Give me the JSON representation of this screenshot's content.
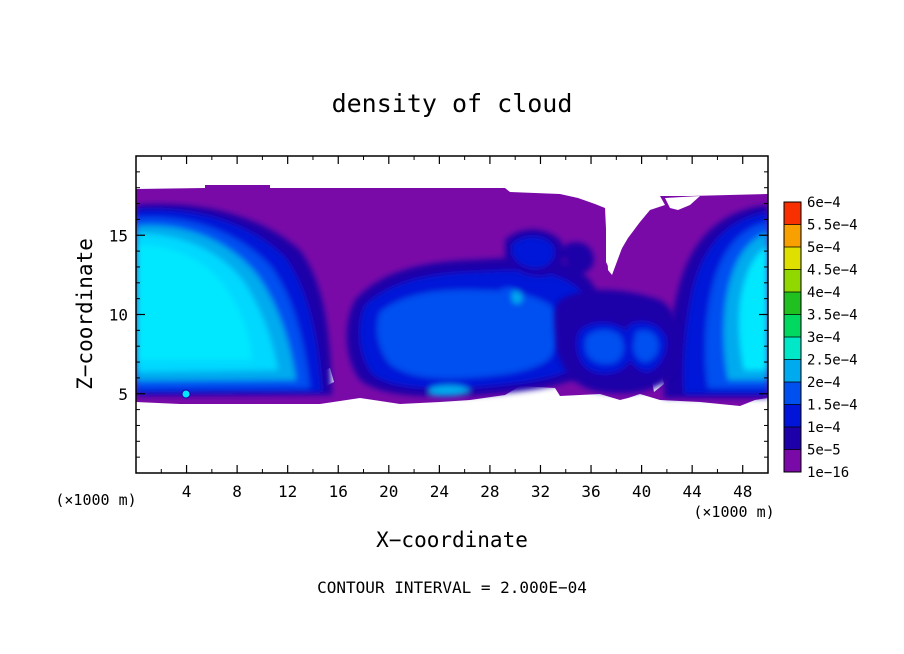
{
  "chart_data": {
    "type": "heatmap",
    "title": "density of cloud",
    "xlabel": "X−coordinate",
    "ylabel": "Z−coordinate",
    "x_unit": "(×1000 m)",
    "y_unit": "(×1000 m)",
    "xlim": [
      0,
      50
    ],
    "ylim": [
      0,
      20
    ],
    "x_ticks": [
      4,
      8,
      12,
      16,
      20,
      24,
      28,
      32,
      36,
      40,
      44,
      48
    ],
    "y_ticks": [
      5,
      10,
      15
    ],
    "footer": "CONTOUR INTERVAL = 2.000E−04",
    "colorbar": {
      "levels": [
        "1e−16",
        "5e−5",
        "1e−4",
        "1.5e−4",
        "2e−4",
        "2.5e−4",
        "3e−4",
        "3.5e−4",
        "4e−4",
        "4.5e−4",
        "5e−4",
        "5.5e−4",
        "6e−4"
      ],
      "colors": [
        "#7a0aa8",
        "#1d00a8",
        "#0015d8",
        "#0050f0",
        "#00aaee",
        "#00e8c8",
        "#00d860",
        "#20c020",
        "#90d800",
        "#e0e000",
        "#f8a000",
        "#f83000",
        "#f87c7c"
      ]
    },
    "colors": {
      "background": "#7a0aa8",
      "deep_blue": "#1d00a8",
      "blue": "#0015d8",
      "mid_blue": "#0050f0",
      "light_blue": "#00aaee",
      "cyan": "#00e8ff"
    }
  }
}
